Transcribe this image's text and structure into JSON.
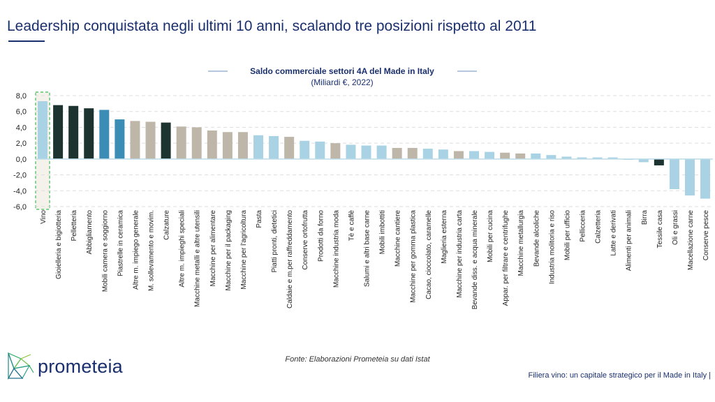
{
  "header": {
    "title": "Leadership conquistata negli ultimi 10 anni, scalando tre posizioni rispetto al 2011"
  },
  "chart_data": {
    "type": "bar",
    "title": "Saldo commerciale settori 4A del Made in Italy",
    "subtitle": "(Miliardi €, 2022)",
    "ylim": [
      -6,
      8
    ],
    "yticks": [
      "8,0",
      "6,0",
      "4,0",
      "2,0",
      "0,0",
      "-2,0",
      "-4,0",
      "-6,0"
    ],
    "grid": true,
    "highlighted_category": "Vino",
    "categories": [
      "Vino",
      "Gioielleria e bigiotteria",
      "Pelletteria",
      "Abbigliamento",
      "Mobili camera e soggiorno",
      "Piastrelle in ceramica",
      "Altre m. impiego generale",
      "M. sollevamento e movim.",
      "Calzature",
      "Altre m. impieghi speciali",
      "Macchine metalli e altre utensili",
      "Macchine per alimentare",
      "Macchine per il packaging",
      "Macchine per l'agricoltura",
      "Pasta",
      "Piatti pronti, dietetici",
      "Caldaie e m.per raffreddamento",
      "Conserve ortofrutta",
      "Prodotti da forno",
      "Macchine industria moda",
      "Tè e caffè",
      "Salumi e altri base carne",
      "Mobili imbottiti",
      "Macchine cantiere",
      "Macchine per gomma plastica",
      "Cacao, cioccolato, caramelle",
      "Maglieria esterna",
      "Macchine per industria carta",
      "Bevande diss. e acqua minerale",
      "Mobili per cucina",
      "Appar. per filtrare e centrifughe",
      "Macchine metallurgia",
      "Bevande alcoliche",
      "Industria molitoria e riso",
      "Mobili per ufficio",
      "Pellicceria",
      "Calzetteria",
      "Latte e derivati",
      "Alimenti per animali",
      "Birra",
      "Tessile casa",
      "Oli e grassi",
      "Macellazione carne",
      "Conserve pesce"
    ],
    "values": [
      7.3,
      6.8,
      6.7,
      6.4,
      6.2,
      5.0,
      4.8,
      4.7,
      4.6,
      4.1,
      4.0,
      3.6,
      3.4,
      3.4,
      3.0,
      2.9,
      2.8,
      2.3,
      2.2,
      2.0,
      1.8,
      1.7,
      1.7,
      1.4,
      1.4,
      1.3,
      1.2,
      1.0,
      1.0,
      0.9,
      0.8,
      0.7,
      0.7,
      0.5,
      0.3,
      0.2,
      0.2,
      0.2,
      -0.1,
      -0.4,
      -0.8,
      -3.8,
      -4.6,
      -5.0
    ],
    "sector_groups": [
      "food",
      "fashion",
      "fashion",
      "fashion",
      "furniture",
      "furniture",
      "machinery",
      "machinery",
      "fashion",
      "machinery",
      "machinery",
      "machinery",
      "machinery",
      "machinery",
      "food",
      "food",
      "machinery",
      "food",
      "food",
      "machinery",
      "food",
      "food",
      "food",
      "machinery",
      "machinery",
      "food",
      "food",
      "machinery",
      "food",
      "food",
      "machinery",
      "machinery",
      "food",
      "food",
      "food",
      "food",
      "food",
      "food",
      "food",
      "food",
      "fashion",
      "food",
      "food",
      "food"
    ],
    "colors": {
      "food": "#a9d3e4",
      "fashion": "#1c3330",
      "furniture": "#3b8db5",
      "machinery": "#bfb6aa",
      "axis": "#bcdbe8",
      "grid": "#dddddd",
      "highlight_fill": "#f5f2ec",
      "highlight_border": "#3cbb55",
      "title_text": "#1a2f6e",
      "title_dash": "#6b8fb9"
    }
  },
  "source": {
    "text": "Fonte: Elaborazioni Prometeia su dati Istat"
  },
  "brand": {
    "name": "prometeia"
  },
  "footer": {
    "text": "Filiera vino: un capitale strategico per il Made in Italy |"
  }
}
